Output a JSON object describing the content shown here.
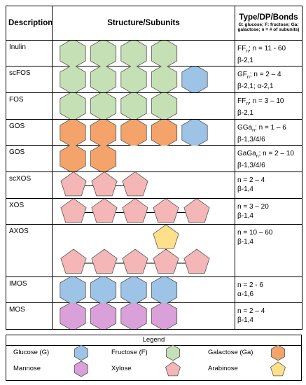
{
  "headers": {
    "description": "Description",
    "structure": "Structure/Subunits",
    "type_title": "Type/DP/Bonds",
    "type_note": "G: glucose; F: fructose; Ga: galactose; n = # of subunits)"
  },
  "colors": {
    "glucose": "#9dc3e6",
    "fructose": "#c5e0b4",
    "galactose": "#f4a46a",
    "mannose": "#d9a0d9",
    "xylose": "#f4b6b6",
    "arabinose": "#ffe08a",
    "stroke": "#555555"
  },
  "rows": [
    {
      "name": "Inulin",
      "formula_base": "FF",
      "formula_tail": "; n = 11 - 60",
      "bonds": "β-2,1",
      "units": [
        "fructose-hex",
        "fructose-hex",
        "fructose-hex",
        "fructose-hex"
      ]
    },
    {
      "name": "scFOS",
      "formula_base": "GF",
      "formula_tail": "; n = 2 – 4",
      "bonds": "β-2,1; α-2,1",
      "units": [
        "fructose-hex",
        "fructose-hex",
        "fructose-hex",
        "fructose-hex",
        "glucose-hex"
      ]
    },
    {
      "name": "FOS",
      "formula_base": "FF",
      "formula_tail": "; n = 3 – 10",
      "bonds": "β-2,1",
      "units": [
        "fructose-hex",
        "fructose-hex",
        "fructose-hex",
        "fructose-hex"
      ]
    },
    {
      "name": "GOS",
      "formula_base": "GGa",
      "formula_tail": "; n = 1 – 6",
      "bonds": "β-1,3/4/6",
      "units": [
        "galactose-hex",
        "galactose-hex",
        "galactose-hex",
        "galactose-hex",
        "glucose-hex"
      ]
    },
    {
      "name": "GOS",
      "formula_base": "GaGa",
      "formula_tail": "; n = 2 – 10",
      "bonds": "β-1,3/4/6",
      "units": [
        "galactose-hex",
        "galactose-hex"
      ]
    },
    {
      "name": "scXOS",
      "formula_base": "",
      "formula_tail": "n = 2 – 4",
      "bonds": "β-1,4",
      "units": [
        "xylose-pent",
        "xylose-pent",
        "xylose-pent"
      ]
    },
    {
      "name": "XOS",
      "formula_base": "",
      "formula_tail": "n = 3 – 20",
      "bonds": "β-1,4",
      "units": [
        "xylose-pent",
        "xylose-pent",
        "xylose-pent",
        "xylose-pent",
        "xylose-pent"
      ]
    },
    {
      "name": "AXOS",
      "formula_base": "",
      "formula_tail": "n = 10 – 60",
      "bonds": "β-1,4",
      "units": [
        "xylose-pent",
        "xylose-pent",
        "xylose-pent",
        "xylose-pent",
        "xylose-pent"
      ],
      "branch": "arabinose-pent"
    },
    {
      "name": "IMOS",
      "formula_base": "",
      "formula_tail": "n = 2 - 6",
      "bonds": "α-1,6",
      "units": [
        "glucose-hex",
        "glucose-hex",
        "glucose-hex",
        "glucose-hex"
      ]
    },
    {
      "name": "MOS",
      "formula_base": "",
      "formula_tail": "n = 2 – 4",
      "bonds": "β-1,4",
      "units": [
        "mannose-hex",
        "mannose-hex",
        "mannose-hex",
        "mannose-hex"
      ]
    }
  ],
  "legend": {
    "title": "Legend",
    "items": [
      {
        "label": "Glucose (G)",
        "shape": "glucose-hex"
      },
      {
        "label": "Fructose (F)",
        "shape": "fructose-hex"
      },
      {
        "label": "Galactose (Ga)",
        "shape": "galactose-hex"
      },
      {
        "label": "Mannose",
        "shape": "mannose-hex"
      },
      {
        "label": "Xylose",
        "shape": "xylose-pent"
      },
      {
        "label": "Arabinose",
        "shape": "arabinose-pent"
      }
    ]
  }
}
